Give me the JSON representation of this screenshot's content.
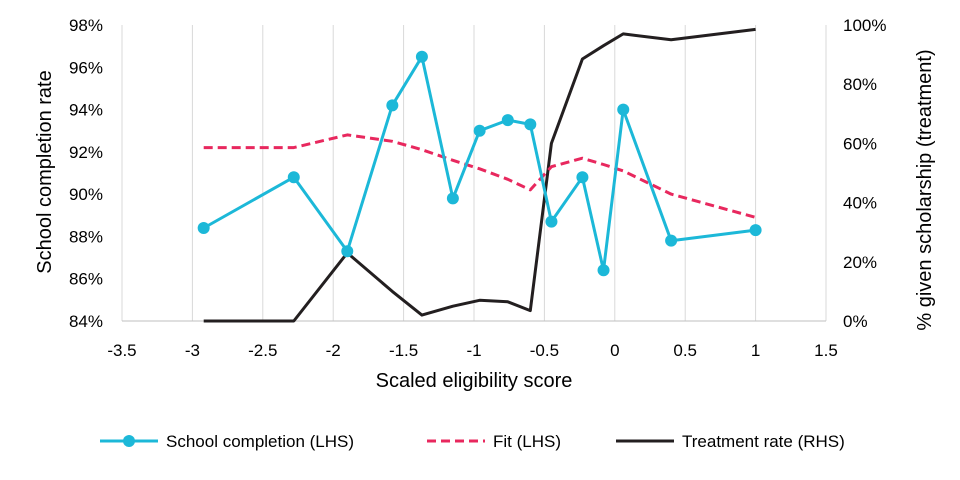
{
  "chart_data": {
    "type": "line",
    "title": "",
    "xlabel": "Scaled eligibility score",
    "ylabel_left": "School completion rate",
    "ylabel_right": "% given scholarship (treatment)",
    "xlim": [
      -3.5,
      1.5
    ],
    "x_ticks": [
      -3.5,
      -3,
      -2.5,
      -2,
      -1.5,
      -1,
      -0.5,
      0,
      0.5,
      1,
      1.5
    ],
    "x_tick_labels": [
      "-3.5",
      "-3",
      "-2.5",
      "-2",
      "-1.5",
      "-1",
      "-0.5",
      "0",
      "0.5",
      "1",
      "1.5"
    ],
    "ylim_left": [
      0.84,
      0.98
    ],
    "y_left_ticks": [
      0.84,
      0.86,
      0.88,
      0.9,
      0.92,
      0.94,
      0.96,
      0.98
    ],
    "y_left_tick_labels": [
      "84%",
      "86%",
      "88%",
      "90%",
      "92%",
      "94%",
      "96%",
      "98%"
    ],
    "ylim_right": [
      0,
      1
    ],
    "y_right_ticks": [
      0,
      0.2,
      0.4,
      0.6,
      0.8,
      1.0
    ],
    "y_right_tick_labels": [
      "0%",
      "20%",
      "40%",
      "60%",
      "80%",
      "100%"
    ],
    "grid": "vertical",
    "legend_position": "bottom",
    "series": [
      {
        "name": "School completion (LHS)",
        "axis": "left",
        "style": "line-markers",
        "color": "#1CB8D8",
        "x": [
          -2.92,
          -2.28,
          -1.9,
          -1.58,
          -1.37,
          -1.15,
          -0.96,
          -0.76,
          -0.6,
          -0.45,
          -0.23,
          -0.08,
          0.06,
          0.4,
          1.0
        ],
        "y": [
          0.884,
          0.908,
          0.873,
          0.942,
          0.965,
          0.898,
          0.93,
          0.935,
          0.933,
          0.887,
          0.908,
          0.864,
          0.94,
          0.878,
          0.883
        ]
      },
      {
        "name": "Fit (LHS)",
        "axis": "left",
        "style": "dashed",
        "color": "#E8285E",
        "x": [
          -2.92,
          -2.28,
          -1.9,
          -1.58,
          -1.37,
          -1.15,
          -0.96,
          -0.76,
          -0.6,
          -0.45,
          -0.23,
          -0.08,
          0.06,
          0.4,
          1.0
        ],
        "y": [
          0.922,
          0.922,
          0.928,
          0.925,
          0.921,
          0.916,
          0.912,
          0.907,
          0.902,
          0.913,
          0.917,
          0.914,
          0.911,
          0.9,
          0.889
        ]
      },
      {
        "name": "Treatment rate (RHS)",
        "axis": "right",
        "style": "line",
        "color": "#231F20",
        "x": [
          -2.92,
          -2.28,
          -1.9,
          -1.58,
          -1.37,
          -1.15,
          -0.96,
          -0.76,
          -0.6,
          -0.45,
          -0.23,
          -0.08,
          0.06,
          0.4,
          1.0
        ],
        "y": [
          0.0,
          0.0,
          0.23,
          0.1,
          0.02,
          0.05,
          0.07,
          0.065,
          0.035,
          0.6,
          0.885,
          0.93,
          0.97,
          0.95,
          0.985
        ]
      }
    ]
  }
}
